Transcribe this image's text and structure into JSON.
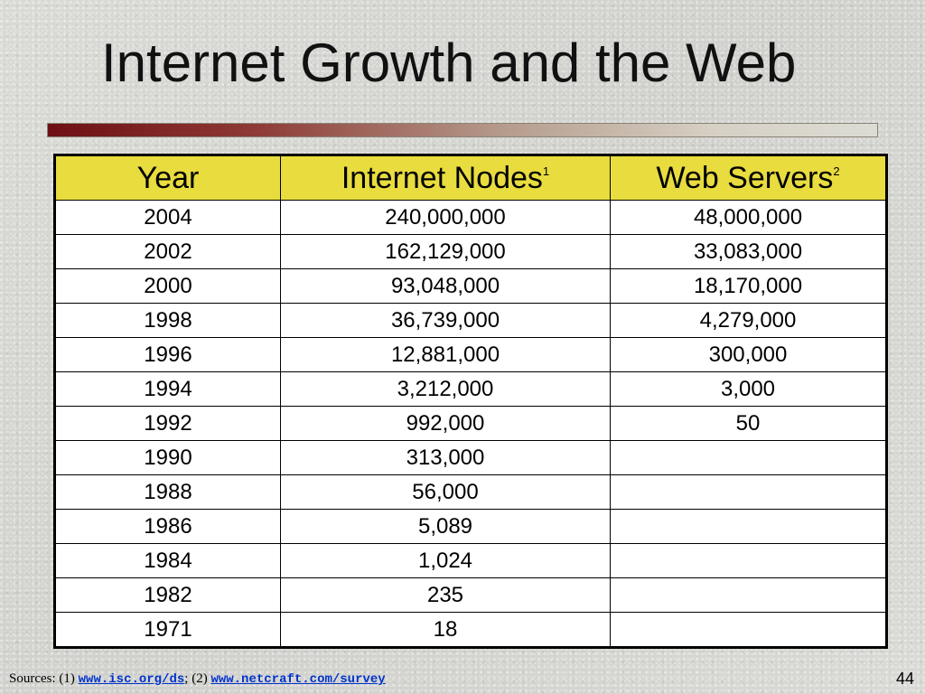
{
  "slide": {
    "title": "Internet Growth and the Web",
    "number": "44"
  },
  "colors": {
    "header_background": "#e8dc3e",
    "rule_start": "#6e0f14",
    "link": "#0033cc"
  },
  "table": {
    "headers": {
      "year": "Year",
      "nodes": "Internet Nodes",
      "nodes_note": "1",
      "servers": "Web Servers",
      "servers_note": "2"
    },
    "rows": [
      {
        "year": "2004",
        "nodes": "240,000,000",
        "servers": "48,000,000"
      },
      {
        "year": "2002",
        "nodes": "162,129,000",
        "servers": "33,083,000"
      },
      {
        "year": "2000",
        "nodes": "93,048,000",
        "servers": "18,170,000"
      },
      {
        "year": "1998",
        "nodes": "36,739,000",
        "servers": "4,279,000"
      },
      {
        "year": "1996",
        "nodes": "12,881,000",
        "servers": "300,000"
      },
      {
        "year": "1994",
        "nodes": "3,212,000",
        "servers": "3,000"
      },
      {
        "year": "1992",
        "nodes": "992,000",
        "servers": "50"
      },
      {
        "year": "1990",
        "nodes": "313,000",
        "servers": ""
      },
      {
        "year": "1988",
        "nodes": "56,000",
        "servers": ""
      },
      {
        "year": "1986",
        "nodes": "5,089",
        "servers": ""
      },
      {
        "year": "1984",
        "nodes": "1,024",
        "servers": ""
      },
      {
        "year": "1982",
        "nodes": "235",
        "servers": ""
      },
      {
        "year": "1971",
        "nodes": "18",
        "servers": ""
      }
    ]
  },
  "footer": {
    "prefix": "Sources: (1) ",
    "link1": "www.isc.org/ds",
    "separator": ";   (2) ",
    "link2": "www.netcraft.com/survey"
  }
}
